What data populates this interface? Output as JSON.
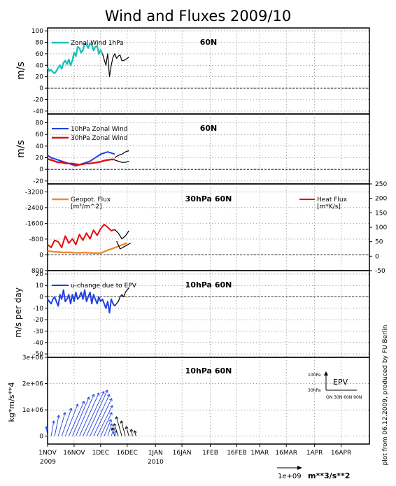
{
  "title": "Wind and Fluxes 2009/10",
  "x_axis": {
    "tick_labels": [
      "1NOV",
      "16NOV",
      "1DEC",
      "16DEC",
      "1JAN",
      "16JAN",
      "1FEB",
      "16FEB",
      "1MAR",
      "16MAR",
      "1APR",
      "16APR"
    ],
    "year_labels": [
      {
        "at": "1NOV",
        "text": "2009"
      },
      {
        "at": "1JAN",
        "text": "2010"
      }
    ]
  },
  "credit": "plot from 06.12.2009, produced by FU Berlin",
  "scale_note": {
    "value": "1e+09",
    "unit": "m**3/s**2"
  },
  "colors": {
    "cyan": "#1fbfbf",
    "blue": "#2040e0",
    "red": "#e01010",
    "orange": "#f08a30",
    "black": "#000000"
  },
  "chart_data": [
    {
      "type": "line",
      "panel": "zonal-wind-1hpa",
      "label": "60N",
      "ylabel": "m/s",
      "yticks": [
        100,
        80,
        60,
        40,
        20,
        0,
        -20,
        -40
      ],
      "ylim": [
        -45,
        105
      ],
      "series": [
        {
          "name": "Zonal Wind 1hPa",
          "color": "cyan",
          "width": 2.4,
          "x": [
            0,
            1,
            2,
            3,
            4,
            5,
            6,
            7,
            8,
            9,
            10,
            11,
            12,
            13,
            14,
            15,
            16,
            17,
            18,
            19,
            20,
            21,
            22,
            23,
            24,
            25,
            26,
            27,
            28,
            29,
            30,
            31
          ],
          "y": [
            36,
            30,
            32,
            28,
            26,
            30,
            36,
            40,
            34,
            44,
            48,
            42,
            50,
            40,
            48,
            62,
            56,
            72,
            70,
            62,
            66,
            78,
            76,
            70,
            78,
            76,
            66,
            72,
            74,
            60,
            66,
            60
          ]
        },
        {
          "name": "",
          "color": "black",
          "width": 1.2,
          "x": [
            31,
            32,
            33,
            34,
            35,
            36,
            37,
            38,
            39,
            40,
            41,
            42,
            43,
            44,
            45,
            46
          ],
          "y": [
            60,
            50,
            40,
            60,
            20,
            40,
            54,
            60,
            52,
            56,
            58,
            48,
            48,
            50,
            52,
            54
          ]
        }
      ]
    },
    {
      "type": "line",
      "panel": "zonal-wind-10-30hpa",
      "label": "60N",
      "ylabel": "m/s",
      "yticks": [
        80,
        60,
        40,
        20,
        0,
        -20
      ],
      "ylim": [
        -25,
        95
      ],
      "series": [
        {
          "name": "10hPa Zonal Wind",
          "color": "blue",
          "width": 2.0,
          "x": [
            0,
            2,
            4,
            6,
            8,
            10,
            12,
            14,
            16,
            18,
            20,
            22,
            24,
            26,
            28,
            30,
            32,
            34,
            36,
            38
          ],
          "y": [
            24,
            20,
            18,
            16,
            14,
            12,
            10,
            8,
            6,
            8,
            10,
            12,
            14,
            18,
            22,
            26,
            28,
            30,
            28,
            26
          ]
        },
        {
          "name": "30hPa Zonal Wind",
          "color": "red",
          "width": 2.4,
          "x": [
            0,
            2,
            4,
            6,
            8,
            10,
            12,
            14,
            16,
            18,
            20,
            22,
            24,
            26,
            28,
            30,
            32,
            34,
            36,
            38
          ],
          "y": [
            18,
            16,
            14,
            12,
            12,
            10,
            10,
            10,
            9,
            8,
            9,
            10,
            10,
            11,
            12,
            13,
            15,
            16,
            17,
            17
          ]
        },
        {
          "name": "",
          "color": "black",
          "width": 1.2,
          "x": [
            38,
            40,
            42,
            44,
            46
          ],
          "y": [
            20,
            24,
            26,
            30,
            32
          ]
        },
        {
          "name": "",
          "color": "black",
          "width": 1.2,
          "x": [
            38,
            40,
            42,
            44,
            46
          ],
          "y": [
            16,
            14,
            12,
            12,
            14
          ]
        }
      ]
    },
    {
      "type": "line",
      "panel": "fluxes-30hpa",
      "label": "30hPa 60N",
      "yticks_left": [
        -3200,
        -2400,
        -1600,
        -800,
        0,
        800
      ],
      "ylim_left": [
        -3600,
        800
      ],
      "yticks_right": [
        250,
        200,
        150,
        100,
        50,
        0,
        -50
      ],
      "ylim_right": [
        -50,
        250
      ],
      "series": [
        {
          "name": "Geopot. Flux",
          "unit": "[m³/m^2]",
          "color": "orange",
          "width": 2.4,
          "axis": "left",
          "x": [
            0,
            3,
            6,
            9,
            12,
            15,
            18,
            21,
            24,
            27,
            30,
            33,
            36,
            39,
            42,
            45
          ],
          "y": [
            -200,
            -160,
            -140,
            -120,
            -130,
            -110,
            -100,
            -120,
            -100,
            -90,
            -80,
            -200,
            -300,
            -400,
            -500,
            -600
          ]
        },
        {
          "name": "Heat Flux",
          "unit": "[m*K/s]",
          "color": "red",
          "width": 2.0,
          "axis": "right",
          "x": [
            0,
            2,
            4,
            6,
            8,
            10,
            12,
            14,
            16,
            18,
            20,
            22,
            24,
            26,
            28,
            30,
            32,
            34,
            36,
            38
          ],
          "y": [
            40,
            30,
            55,
            50,
            30,
            70,
            45,
            60,
            40,
            75,
            55,
            80,
            60,
            90,
            72,
            95,
            110,
            100,
            88,
            92
          ]
        },
        {
          "name": "",
          "color": "black",
          "width": 1.2,
          "axis": "left",
          "x": [
            39,
            41,
            43,
            45,
            47
          ],
          "y": [
            -700,
            -300,
            -400,
            -500,
            -600
          ]
        },
        {
          "name": "",
          "color": "black",
          "width": 1.2,
          "axis": "right",
          "x": [
            38,
            40,
            42,
            44,
            46
          ],
          "y": [
            92,
            80,
            60,
            70,
            88
          ]
        }
      ]
    },
    {
      "type": "line",
      "panel": "u-change-epv",
      "label": "10hPa 60N",
      "ylabel": "m/s per day",
      "yticks": [
        20,
        10,
        0,
        -10,
        -20,
        -30,
        -40,
        -50
      ],
      "ylim": [
        -53,
        23
      ],
      "series": [
        {
          "name": "u-change due to EPV",
          "color": "blue",
          "width": 2.0,
          "x": [
            0,
            1,
            2,
            3,
            4,
            5,
            6,
            7,
            8,
            9,
            10,
            11,
            12,
            13,
            14,
            15,
            16,
            17,
            18,
            19,
            20,
            21,
            22,
            23,
            24,
            25,
            26,
            27,
            28,
            29,
            30,
            31,
            32,
            33,
            34,
            35,
            36,
            37,
            38
          ],
          "y": [
            -2,
            -4,
            -6,
            -2,
            0,
            -4,
            -8,
            2,
            -2,
            6,
            -4,
            -2,
            2,
            -6,
            2,
            -4,
            4,
            -2,
            0,
            4,
            -2,
            6,
            -4,
            0,
            4,
            -6,
            2,
            -2,
            -6,
            0,
            -4,
            -2,
            -6,
            -10,
            -4,
            -14,
            -2,
            -6,
            -8
          ]
        },
        {
          "name": "",
          "color": "black",
          "width": 1.2,
          "x": [
            38,
            39,
            40,
            41,
            42,
            43,
            44,
            45,
            46
          ],
          "y": [
            -8,
            -6,
            -4,
            0,
            2,
            0,
            4,
            6,
            8
          ]
        }
      ]
    },
    {
      "type": "vector",
      "panel": "epv-vectors",
      "label": "10hPa 60N",
      "ylabel": "kg*m/s**4",
      "yticks": [
        0,
        1000000,
        2000000,
        3000000
      ],
      "ytick_labels": [
        "0",
        "1e+06",
        "2e+06",
        "3e+06"
      ],
      "ylim": [
        -300000,
        3000000
      ],
      "key": {
        "label": "EPV",
        "y_top": "10hPa",
        "y_bottom": "30hPa",
        "x_label": "ON 30N 60N 90N"
      },
      "vectors_blue": [
        [
          0,
          0,
          -2,
          14
        ],
        [
          2,
          0,
          4,
          22
        ],
        [
          4,
          0,
          6,
          30
        ],
        [
          6,
          0,
          10,
          34
        ],
        [
          8,
          0,
          14,
          40
        ],
        [
          10,
          0,
          18,
          46
        ],
        [
          12,
          0,
          22,
          50
        ],
        [
          14,
          0,
          24,
          56
        ],
        [
          16,
          0,
          26,
          60
        ],
        [
          18,
          0,
          28,
          62
        ],
        [
          20,
          0,
          30,
          64
        ],
        [
          22,
          0,
          30,
          66
        ],
        [
          24,
          0,
          28,
          60
        ],
        [
          26,
          0,
          26,
          54
        ],
        [
          28,
          0,
          22,
          44
        ],
        [
          30,
          0,
          16,
          34
        ],
        [
          32,
          0,
          10,
          24
        ],
        [
          34,
          0,
          6,
          18
        ],
        [
          36,
          0,
          4,
          12
        ],
        [
          38,
          0,
          2,
          8
        ]
      ],
      "vectors_black": [
        [
          38,
          0,
          -4,
          12
        ],
        [
          40,
          0,
          -6,
          18
        ],
        [
          42,
          0,
          -8,
          28
        ],
        [
          44,
          0,
          -6,
          22
        ],
        [
          46,
          0,
          -4,
          14
        ],
        [
          48,
          0,
          -2,
          10
        ],
        [
          50,
          0,
          -2,
          8
        ]
      ]
    }
  ]
}
